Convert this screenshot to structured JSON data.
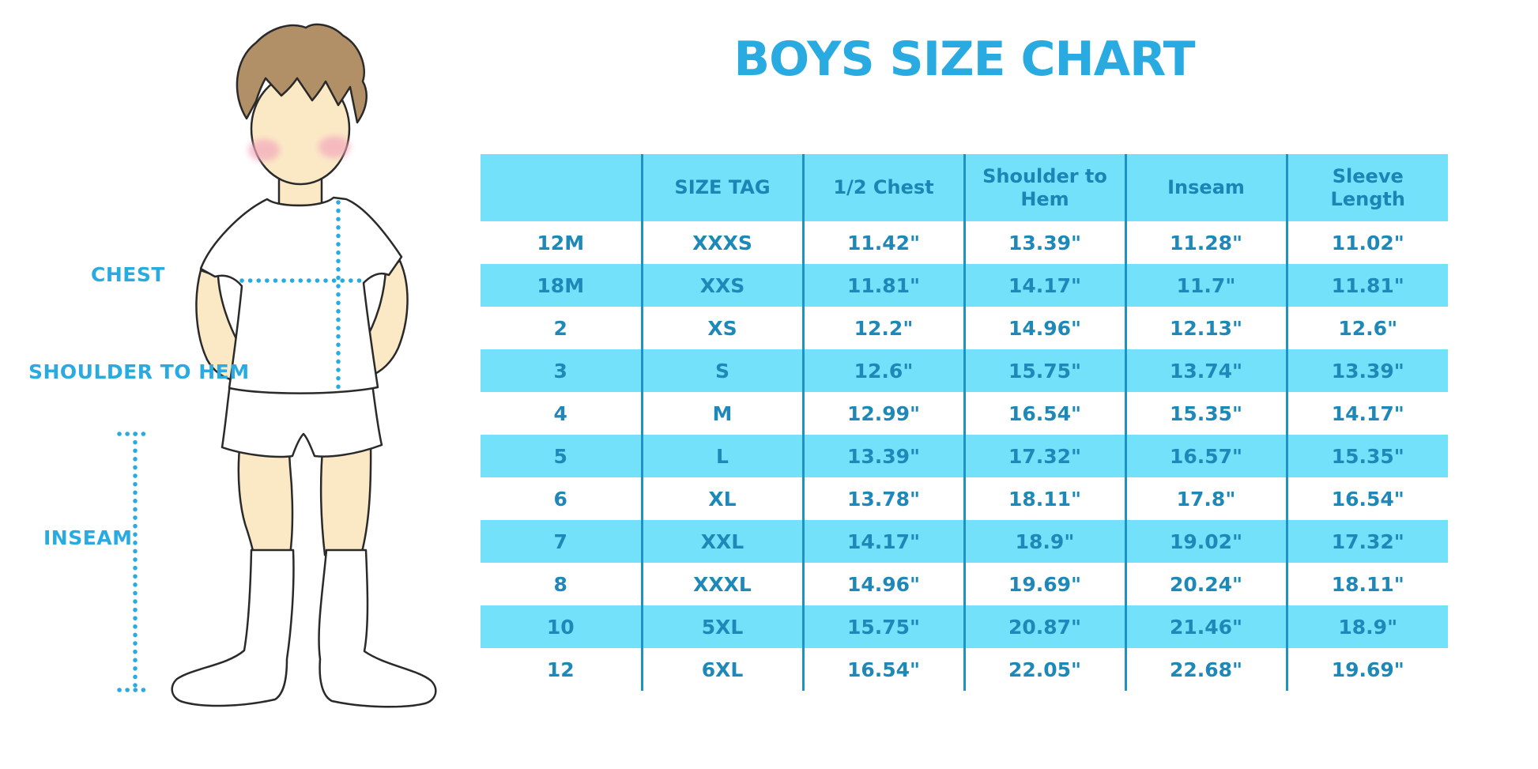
{
  "title": "BOYS SIZE CHART",
  "figure": {
    "labels": {
      "chest": "CHEST",
      "shoulder_to_hem": "SHOULDER TO HEM",
      "inseam": "INSEAM"
    }
  },
  "colors": {
    "accent_blue": "#29ABE2",
    "table_text_blue": "#1E88B8",
    "stripe_blue": "#74E1FA",
    "divider_blue": "#1D93C5",
    "skin": "#FBE9C6",
    "hair_brown": "#B29067",
    "cheek_pink": "#F3A7BC"
  },
  "chart_data": {
    "type": "table",
    "title": "BOYS SIZE CHART",
    "units": "inches",
    "columns": [
      "",
      "SIZE TAG",
      "1/2 Chest",
      "Shoulder to Hem",
      "Inseam",
      "Sleeve Length"
    ],
    "rows": [
      [
        "12M",
        "XXXS",
        "11.42\"",
        "13.39\"",
        "11.28\"",
        "11.02\""
      ],
      [
        "18M",
        "XXS",
        "11.81\"",
        "14.17\"",
        "11.7\"",
        "11.81\""
      ],
      [
        "2",
        "XS",
        "12.2\"",
        "14.96\"",
        "12.13\"",
        "12.6\""
      ],
      [
        "3",
        "S",
        "12.6\"",
        "15.75\"",
        "13.74\"",
        "13.39\""
      ],
      [
        "4",
        "M",
        "12.99\"",
        "16.54\"",
        "15.35\"",
        "14.17\""
      ],
      [
        "5",
        "L",
        "13.39\"",
        "17.32\"",
        "16.57\"",
        "15.35\""
      ],
      [
        "6",
        "XL",
        "13.78\"",
        "18.11\"",
        "17.8\"",
        "16.54\""
      ],
      [
        "7",
        "XXL",
        "14.17\"",
        "18.9\"",
        "19.02\"",
        "17.32\""
      ],
      [
        "8",
        "XXXL",
        "14.96\"",
        "19.69\"",
        "20.24\"",
        "18.11\""
      ],
      [
        "10",
        "5XL",
        "15.75\"",
        "20.87\"",
        "21.46\"",
        "18.9\""
      ],
      [
        "12",
        "6XL",
        "16.54\"",
        "22.05\"",
        "22.68\"",
        "19.69\""
      ]
    ],
    "layout": {
      "striped": true,
      "stripe_colors": [
        "#FFFFFF",
        "#74E1FA"
      ],
      "header_bg": "#74E1FA",
      "grid": "vertical-dividers-only"
    }
  }
}
